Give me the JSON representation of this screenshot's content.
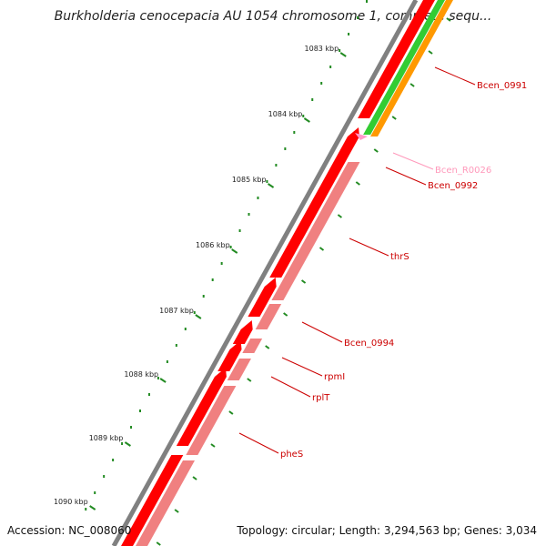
{
  "title": "Burkholderia cenocepacia AU 1054 chromosome 1, complete sequ...",
  "footer": {
    "accession": "Accession: NC_008060",
    "summary": "Topology: circular; Length: 3,294,563 bp; Genes: 3,034"
  },
  "colors": {
    "backbone": "#808080",
    "forward_cds": "#ff0000",
    "reverse_cds": "#f08080",
    "rna": "#ff99cc",
    "gene_track_green": "#33cc33",
    "gene_track_orange": "#ff9900",
    "tick": "#228b22",
    "label_red": "#cc0000",
    "label_pink": "#ff99bb"
  },
  "ticks": [
    "1083 kbp",
    "1084 kbp",
    "1085 kbp",
    "1086 kbp",
    "1087 kbp",
    "1088 kbp",
    "1089 kbp",
    "1090 kbp"
  ],
  "genes": [
    {
      "label": "Bcen_0991",
      "type": "cds"
    },
    {
      "label": "Bcen_R0026",
      "type": "rna"
    },
    {
      "label": "Bcen_0992",
      "type": "cds"
    },
    {
      "label": "thrS",
      "type": "cds"
    },
    {
      "label": "Bcen_0994",
      "type": "cds"
    },
    {
      "label": "rpmI",
      "type": "cds"
    },
    {
      "label": "rplT",
      "type": "cds"
    },
    {
      "label": "pheS",
      "type": "cds"
    }
  ]
}
